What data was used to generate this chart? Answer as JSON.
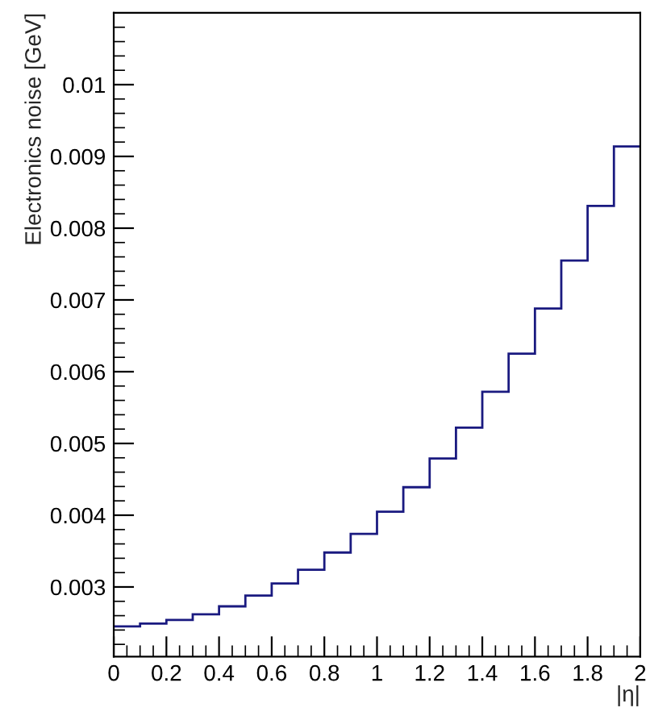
{
  "chart_data": {
    "type": "histogram",
    "xlabel": "|η|",
    "ylabel": "Electronics noise [GeV]",
    "bins": [
      0,
      0.1,
      0.2,
      0.3,
      0.4,
      0.5,
      0.6,
      0.7,
      0.8,
      0.9,
      1.0,
      1.1,
      1.2,
      1.3,
      1.4,
      1.5,
      1.6,
      1.7,
      1.8,
      1.9,
      2.0
    ],
    "values": [
      0.00245,
      0.00249,
      0.00254,
      0.00262,
      0.00273,
      0.00288,
      0.00305,
      0.00324,
      0.00348,
      0.00374,
      0.00405,
      0.00439,
      0.00479,
      0.00522,
      0.00572,
      0.00625,
      0.00688,
      0.00755,
      0.00831,
      0.00914
    ],
    "color": "#1a1a80",
    "xlim": [
      0,
      2
    ],
    "xticks": [
      0,
      0.2,
      0.4,
      0.6,
      0.8,
      1,
      1.2,
      1.4,
      1.6,
      1.8,
      2
    ],
    "ylim": [
      0.00203,
      0.011
    ],
    "yticks": [
      0.003,
      0.004,
      0.005,
      0.006,
      0.007,
      0.008,
      0.009,
      0.01
    ],
    "grid": false
  }
}
